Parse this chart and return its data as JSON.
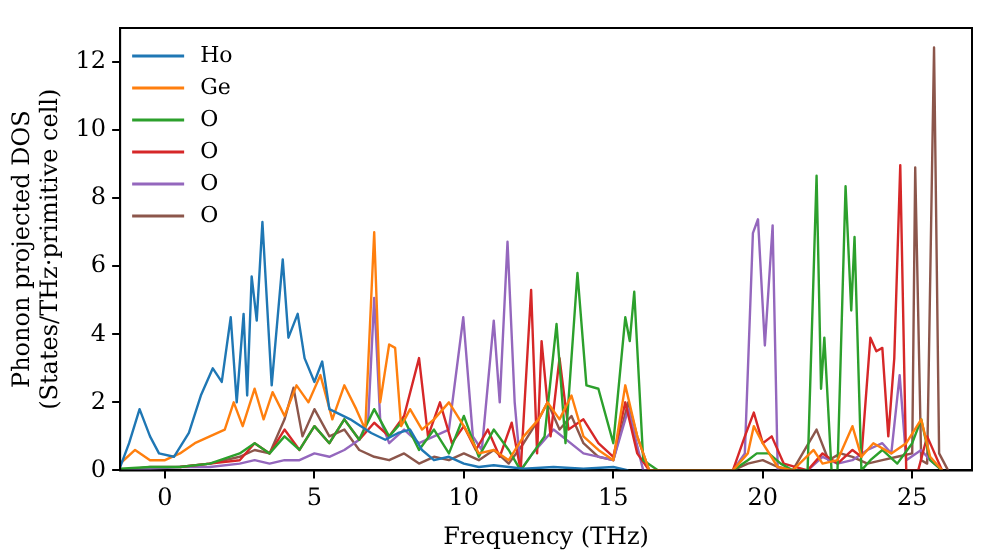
{
  "chart_data": {
    "type": "line",
    "xlabel": "Frequency (THz)",
    "ylabel": "Phonon projected DOS\n(States/THz·primitive cell)",
    "xlim": [
      -1.5,
      27
    ],
    "ylim": [
      0,
      13
    ],
    "xticks": [
      0,
      5,
      10,
      15,
      20,
      25
    ],
    "yticks": [
      0,
      2,
      4,
      6,
      8,
      10,
      12
    ],
    "grid": false,
    "legend": "top left",
    "marker": "none",
    "line_style": "solid",
    "series": [
      {
        "name": "Ho",
        "color": "#1f77b4",
        "x": [
          -1.5,
          -1.2,
          -0.85,
          -0.5,
          -0.2,
          0.3,
          0.8,
          1.2,
          1.6,
          1.9,
          2.2,
          2.4,
          2.63,
          2.75,
          2.9,
          3.07,
          3.26,
          3.57,
          3.94,
          4.13,
          4.44,
          4.67,
          5.0,
          5.26,
          5.5,
          6.2,
          6.9,
          7.37,
          7.8,
          8.2,
          8.6,
          9,
          9.5,
          10,
          10.5,
          11,
          11.5,
          12,
          13,
          14,
          15,
          15.5
        ],
        "values": [
          0.1,
          0.8,
          1.8,
          1.0,
          0.5,
          0.4,
          1.1,
          2.2,
          3.0,
          2.6,
          4.5,
          2.0,
          4.6,
          2.2,
          5.7,
          4.4,
          7.3,
          2.5,
          6.2,
          3.9,
          4.6,
          3.3,
          2.6,
          3.2,
          1.8,
          1.5,
          1.1,
          0.9,
          1.1,
          1.2,
          0.6,
          0.3,
          0.4,
          0.2,
          0.1,
          0.15,
          0.1,
          0.05,
          0.1,
          0.05,
          0.1,
          0
        ]
      },
      {
        "name": "Ge",
        "color": "#ff7f0e",
        "x": [
          -1.5,
          -1.0,
          -0.5,
          0,
          0.5,
          1,
          1.5,
          2,
          2.3,
          2.6,
          3,
          3.3,
          3.6,
          4,
          4.4,
          4.8,
          5.2,
          5.6,
          6,
          6.4,
          6.7,
          7.0,
          7.2,
          7.5,
          7.7,
          7.9,
          8.2,
          8.6,
          9,
          9.5,
          10,
          10.5,
          11,
          11.5,
          12,
          12.5,
          12.8,
          13.2,
          13.6,
          14,
          14.5,
          15,
          15.4,
          15.8,
          16.2,
          19,
          19.5,
          19.7,
          20,
          20.5,
          21,
          21.7,
          22,
          22.5,
          23,
          23.3,
          23.7,
          24.3,
          24.8,
          25.3,
          25.6,
          26
        ],
        "values": [
          0.2,
          0.6,
          0.3,
          0.3,
          0.5,
          0.8,
          1.0,
          1.2,
          2.0,
          1.3,
          2.4,
          1.5,
          2.3,
          1.6,
          2.5,
          2.0,
          2.8,
          1.5,
          2.5,
          1.8,
          1.2,
          7.0,
          2.0,
          3.7,
          3.6,
          1.3,
          1.8,
          1.2,
          1.5,
          2.0,
          1.3,
          0.5,
          0.6,
          0.3,
          1.0,
          1.5,
          2.0,
          1.5,
          2.2,
          1.0,
          0.6,
          0.3,
          2.5,
          1.0,
          0,
          0,
          0.5,
          1.3,
          0.8,
          0.1,
          0,
          0.6,
          0.2,
          0.3,
          1.3,
          0.4,
          0.8,
          0.5,
          0.8,
          1.5,
          0.4,
          0
        ]
      },
      {
        "name": "O",
        "color": "#2ca02c",
        "x": [
          -1.5,
          -0.5,
          0.5,
          1.5,
          2.5,
          3,
          3.5,
          4,
          4.5,
          5,
          5.5,
          6,
          6.5,
          7,
          7.5,
          8,
          8.5,
          9,
          9.5,
          10,
          10.5,
          11,
          11.5,
          11.9,
          12.3,
          12.7,
          13.1,
          13.4,
          13.8,
          14.1,
          14.5,
          15,
          15.4,
          15.55,
          15.7,
          16,
          16.5,
          19,
          19.5,
          19.8,
          20.2,
          20.6,
          21,
          21.5,
          21.8,
          21.95,
          22.06,
          22.3,
          22.5,
          22.77,
          22.96,
          23.07,
          23.3,
          23.6,
          24,
          24.5,
          25,
          25.3,
          25.6,
          26
        ],
        "values": [
          0.05,
          0.1,
          0.1,
          0.2,
          0.5,
          0.8,
          0.5,
          1.0,
          0.6,
          1.3,
          0.8,
          1.5,
          0.9,
          1.8,
          1.0,
          1.5,
          0.6,
          1.2,
          0.5,
          1.6,
          0.4,
          1.2,
          0.6,
          0,
          0.5,
          1.0,
          4.3,
          0.8,
          5.8,
          2.5,
          2.4,
          0.8,
          4.5,
          3.8,
          5.25,
          0.3,
          0,
          0,
          0.3,
          0.5,
          0.5,
          0.2,
          0,
          0,
          8.66,
          2.4,
          3.9,
          0,
          0,
          8.35,
          4.7,
          6.86,
          0,
          0.3,
          0.6,
          0.2,
          0.8,
          1.5,
          0.3,
          0
        ]
      },
      {
        "name": "O",
        "color": "#d62728",
        "x": [
          0.5,
          1.5,
          2.5,
          3,
          3.5,
          4,
          4.5,
          5,
          5.5,
          6,
          6.5,
          7,
          7.5,
          8,
          8.5,
          8.8,
          9.2,
          9.6,
          10,
          10.4,
          10.8,
          11.2,
          11.6,
          11.9,
          12.25,
          12.45,
          12.6,
          12.9,
          13.2,
          13.5,
          14,
          14.5,
          15,
          15.4,
          15.8,
          16.2,
          19,
          19.4,
          19.7,
          20,
          20.3,
          20.7,
          21.5,
          22,
          22.5,
          23,
          23.3,
          23.6,
          23.8,
          24.0,
          24.2,
          24.4,
          24.6,
          24.8,
          25.2,
          25.5,
          26
        ],
        "values": [
          0.1,
          0.2,
          0.3,
          0.8,
          0.5,
          1.2,
          0.6,
          1.3,
          0.8,
          1.5,
          0.9,
          1.4,
          1.0,
          1.6,
          3.3,
          1.0,
          2.0,
          0.8,
          1.3,
          0.6,
          1.2,
          0.4,
          1.4,
          0,
          5.3,
          0.5,
          3.8,
          1.0,
          3.3,
          1.2,
          1.5,
          0.8,
          0.4,
          2.0,
          0.5,
          0,
          0,
          1.0,
          1.7,
          0.8,
          1.0,
          0.2,
          0,
          0.5,
          0.2,
          0.6,
          0.4,
          3.9,
          3.5,
          3.6,
          1.0,
          3.3,
          8.97,
          0,
          0,
          1.0,
          0
        ]
      },
      {
        "name": "O",
        "color": "#9467bd",
        "x": [
          -1.5,
          -0.5,
          0.5,
          1.5,
          2.5,
          3,
          3.5,
          4,
          4.5,
          5,
          5.5,
          6,
          6.5,
          6.8,
          7.0,
          7.2,
          7.5,
          8,
          8.5,
          9,
          9.5,
          9.98,
          10.3,
          10.6,
          11.0,
          11.2,
          11.46,
          11.7,
          11.9,
          12.3,
          13,
          14,
          15,
          15.5,
          16,
          19,
          19.4,
          19.67,
          19.84,
          20.07,
          20.33,
          20.5,
          20.7,
          21.5,
          22,
          22.5,
          23,
          23.5,
          24,
          24.3,
          24.58,
          24.8,
          25.3,
          25.6,
          26
        ],
        "values": [
          0,
          0.05,
          0.1,
          0.1,
          0.2,
          0.3,
          0.2,
          0.3,
          0.3,
          0.5,
          0.4,
          0.6,
          0.9,
          1.5,
          5.07,
          1.5,
          0.8,
          1.2,
          0.8,
          1.0,
          1.2,
          4.5,
          1.0,
          0.6,
          4.4,
          2.0,
          6.72,
          2.0,
          0,
          0.5,
          1.2,
          0.5,
          0.3,
          1.8,
          0,
          0,
          0.5,
          6.97,
          7.38,
          3.67,
          7.2,
          0,
          0,
          0,
          0.4,
          0.2,
          0.3,
          0.6,
          0.8,
          0.5,
          2.8,
          0.3,
          0.6,
          0.3,
          0
        ]
      },
      {
        "name": "O",
        "color": "#8c564b",
        "x": [
          -1.5,
          -0.5,
          0.5,
          1.5,
          2.5,
          3,
          3.5,
          4,
          4.3,
          4.6,
          5,
          5.5,
          6,
          6.5,
          7,
          7.5,
          8,
          8.5,
          9,
          9.5,
          10,
          10.5,
          11,
          11.5,
          12,
          12.5,
          12.8,
          13.2,
          13.6,
          14,
          14.5,
          15,
          15.5,
          15.8,
          16.2,
          19,
          19.5,
          20,
          20.5,
          21,
          21.8,
          22.2,
          22.6,
          23,
          23.5,
          24,
          24.5,
          25,
          25.1,
          25.3,
          25.5,
          25.73,
          25.9,
          26.2
        ],
        "values": [
          0,
          0.1,
          0.1,
          0.2,
          0.4,
          0.6,
          0.5,
          1.5,
          2.43,
          1.0,
          1.8,
          1.0,
          1.2,
          0.6,
          0.4,
          0.3,
          0.5,
          0.2,
          0.4,
          0.3,
          0.5,
          0.3,
          0.6,
          0.2,
          0.8,
          1.5,
          2.0,
          1.2,
          1.6,
          0.8,
          0.4,
          0.3,
          2.0,
          1.0,
          0,
          0,
          0.2,
          0.3,
          0.1,
          0,
          1.2,
          0.3,
          0.5,
          0.4,
          0.2,
          0.3,
          0.4,
          0.5,
          8.9,
          0.3,
          0.2,
          12.43,
          0.5,
          0
        ]
      }
    ]
  }
}
